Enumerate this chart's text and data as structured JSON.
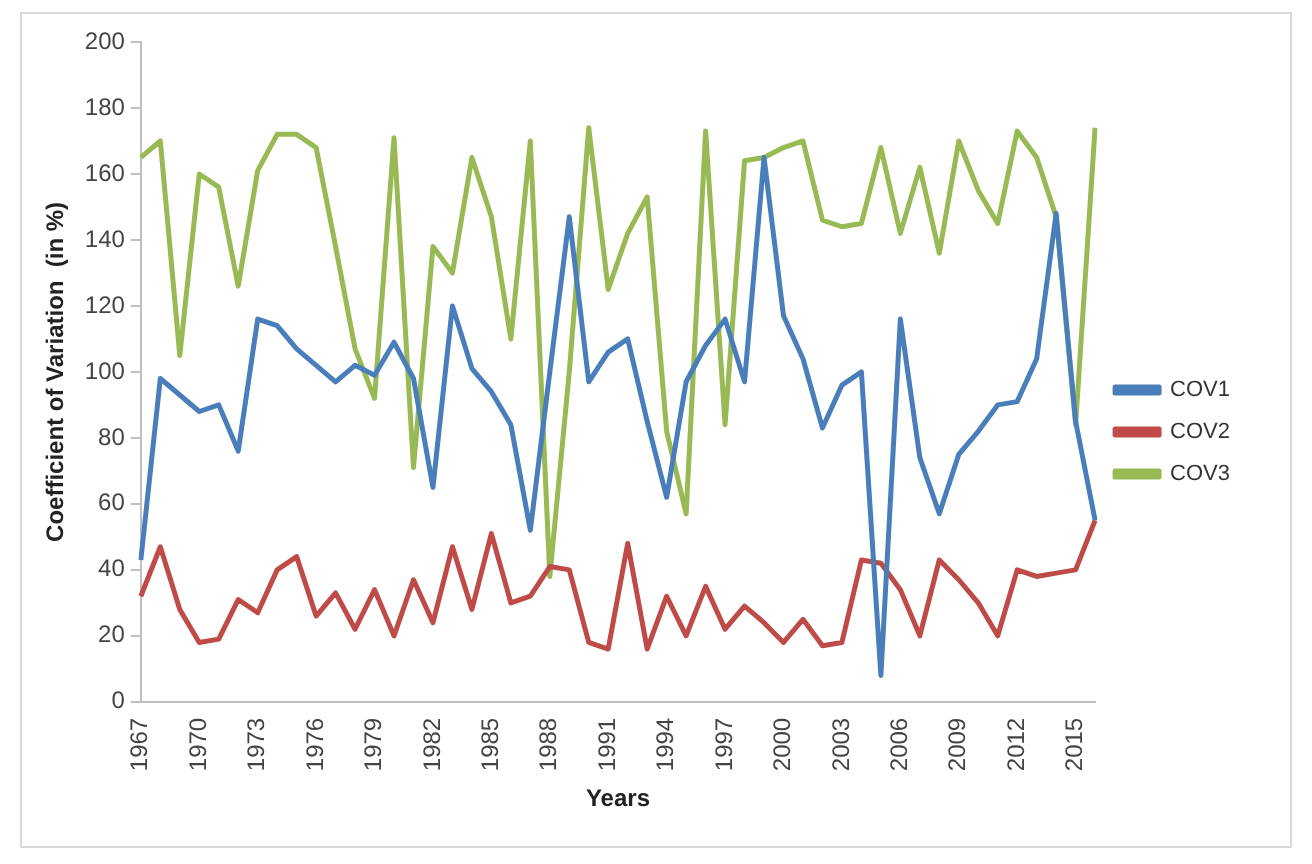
{
  "chart_data": {
    "type": "line",
    "xlabel": "Years",
    "ylabel": "Coefficient of Variation  (in %)",
    "categories": [
      "1967",
      null,
      null,
      "1970",
      null,
      null,
      "1973",
      null,
      null,
      "1976",
      null,
      null,
      "1979",
      null,
      null,
      "1982",
      null,
      null,
      "1985",
      null,
      null,
      "1988",
      null,
      null,
      "1991",
      null,
      null,
      "1994",
      null,
      null,
      "1997",
      null,
      null,
      "2000",
      null,
      null,
      "2003",
      null,
      null,
      "2006",
      null,
      null,
      "2009",
      null,
      null,
      "2012",
      null,
      null,
      "2015",
      null
    ],
    "series": [
      {
        "name": "COV1",
        "color": "#4a7ebb",
        "values": [
          43,
          98,
          93,
          88,
          90,
          76,
          116,
          114,
          107,
          102,
          97,
          102,
          99,
          109,
          98,
          65,
          120,
          101,
          94,
          84,
          52,
          100,
          147,
          97,
          106,
          110,
          85,
          62,
          97,
          108,
          116,
          97,
          165,
          117,
          104,
          83,
          96,
          100,
          8,
          116,
          74,
          57,
          75,
          82,
          90,
          91,
          104,
          148,
          85,
          55
        ]
      },
      {
        "name": "COV2",
        "color": "#be4b48",
        "values": [
          32,
          47,
          28,
          18,
          19,
          31,
          27,
          40,
          44,
          26,
          33,
          22,
          34,
          20,
          37,
          24,
          47,
          28,
          51,
          30,
          32,
          41,
          40,
          18,
          16,
          48,
          16,
          32,
          20,
          35,
          22,
          29,
          24,
          18,
          25,
          17,
          18,
          43,
          42,
          34,
          20,
          43,
          37,
          30,
          20,
          40,
          38,
          39,
          40,
          55
        ]
      },
      {
        "name": "COV3",
        "color": "#98b954",
        "values": [
          165,
          170,
          105,
          160,
          156,
          126,
          161,
          172,
          172,
          168,
          138,
          107,
          92,
          171,
          71,
          138,
          130,
          165,
          147,
          110,
          170,
          38,
          100,
          174,
          125,
          142,
          153,
          82,
          57,
          173,
          84,
          164,
          165,
          168,
          170,
          146,
          144,
          145,
          168,
          142,
          162,
          136,
          170,
          155,
          145,
          173,
          165,
          147,
          84,
          174
        ]
      }
    ],
    "ylim": [
      0,
      200
    ],
    "yticks": [
      0,
      20,
      40,
      60,
      80,
      100,
      120,
      140,
      160,
      180,
      200
    ],
    "grid": false,
    "legend": "right",
    "marker": "none",
    "line_style": "solid"
  }
}
